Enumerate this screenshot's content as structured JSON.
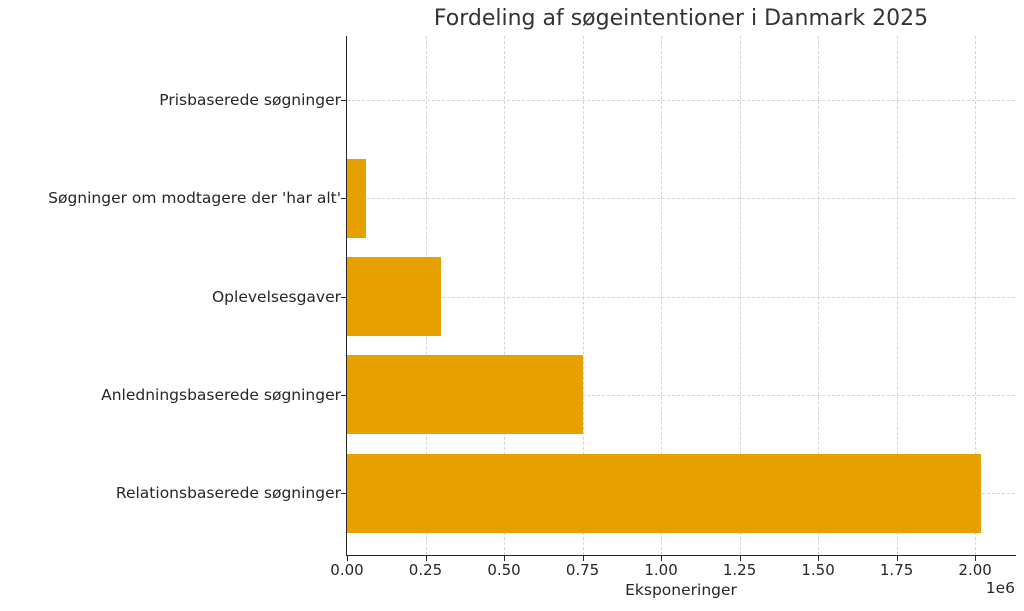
{
  "chart_data": {
    "type": "bar",
    "orientation": "horizontal",
    "title": "Fordeling af søgeintentioner i Danmark 2025",
    "xlabel": "Eksponeringer",
    "ylabel": "",
    "x_offset_label": "1e6",
    "categories": [
      "Relationsbaserede søgninger",
      "Anledningsbaserede søgninger",
      "Oplevelsesgaver",
      "Søgninger om modtagere der 'har alt'",
      "Prisbaserede søgninger"
    ],
    "values": [
      2020000,
      750000,
      300000,
      60000,
      0
    ],
    "xlim": [
      0,
      2127000
    ],
    "xticks": [
      0,
      250000,
      500000,
      750000,
      1000000,
      1250000,
      1500000,
      1750000,
      2000000
    ],
    "xtick_labels": [
      "0.00",
      "0.25",
      "0.50",
      "0.75",
      "1.00",
      "1.25",
      "1.50",
      "1.75",
      "2.00"
    ],
    "grid": true,
    "bar_color": "#e6a000",
    "legend": null
  }
}
